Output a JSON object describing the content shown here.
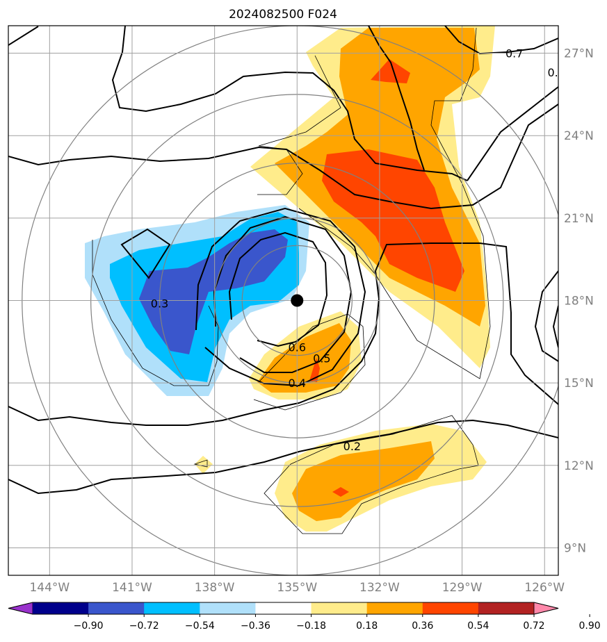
{
  "chart_data": {
    "type": "contour_map",
    "title": "2024082500 F024",
    "lon_range": [
      -145.5,
      -125.5
    ],
    "lat_range": [
      8,
      28
    ],
    "lon_ticks": [
      -144,
      -141,
      -138,
      -135,
      -132,
      -129,
      -126
    ],
    "lon_tick_labels": [
      "144°W",
      "141°W",
      "138°W",
      "135°W",
      "132°W",
      "129°W",
      "126°W"
    ],
    "lat_ticks": [
      9,
      12,
      15,
      18,
      21,
      24,
      27
    ],
    "lat_tick_labels": [
      "9°N",
      "12°N",
      "15°N",
      "18°N",
      "21°N",
      "24°N",
      "27°N"
    ],
    "storm_center": {
      "lon": -135,
      "lat": 18
    },
    "range_ring_radii_deg": [
      2,
      3,
      5,
      7.5,
      10
    ],
    "contour_labels": [
      {
        "text": "0.7",
        "lon": -127.1,
        "lat": 27.0
      },
      {
        "text": "0.",
        "lon": -125.7,
        "lat": 26.3
      },
      {
        "text": "0.3",
        "lon": -140.0,
        "lat": 17.9
      },
      {
        "text": "0.6",
        "lon": -135.0,
        "lat": 16.3
      },
      {
        "text": "0.5",
        "lon": -134.1,
        "lat": 15.9
      },
      {
        "text": "0.4",
        "lon": -135.0,
        "lat": 15.0
      },
      {
        "text": "0.2",
        "lon": -133.0,
        "lat": 12.7
      }
    ],
    "colorbar": {
      "ticks": [
        -0.9,
        -0.72,
        -0.54,
        -0.36,
        -0.18,
        0.18,
        0.36,
        0.54,
        0.72,
        0.9
      ],
      "tick_labels": [
        "−0.90",
        "−0.72",
        "−0.54",
        "−0.36",
        "−0.18",
        "0.18",
        "0.36",
        "0.54",
        "0.72",
        "0.90"
      ],
      "colors": [
        "#9932cc",
        "#00008b",
        "#3a56cc",
        "#00bfff",
        "#b0e0fa",
        "#ffffff",
        "#ffec8b",
        "#ffa500",
        "#ff4500",
        "#b22222",
        "#ff88aa"
      ]
    }
  }
}
